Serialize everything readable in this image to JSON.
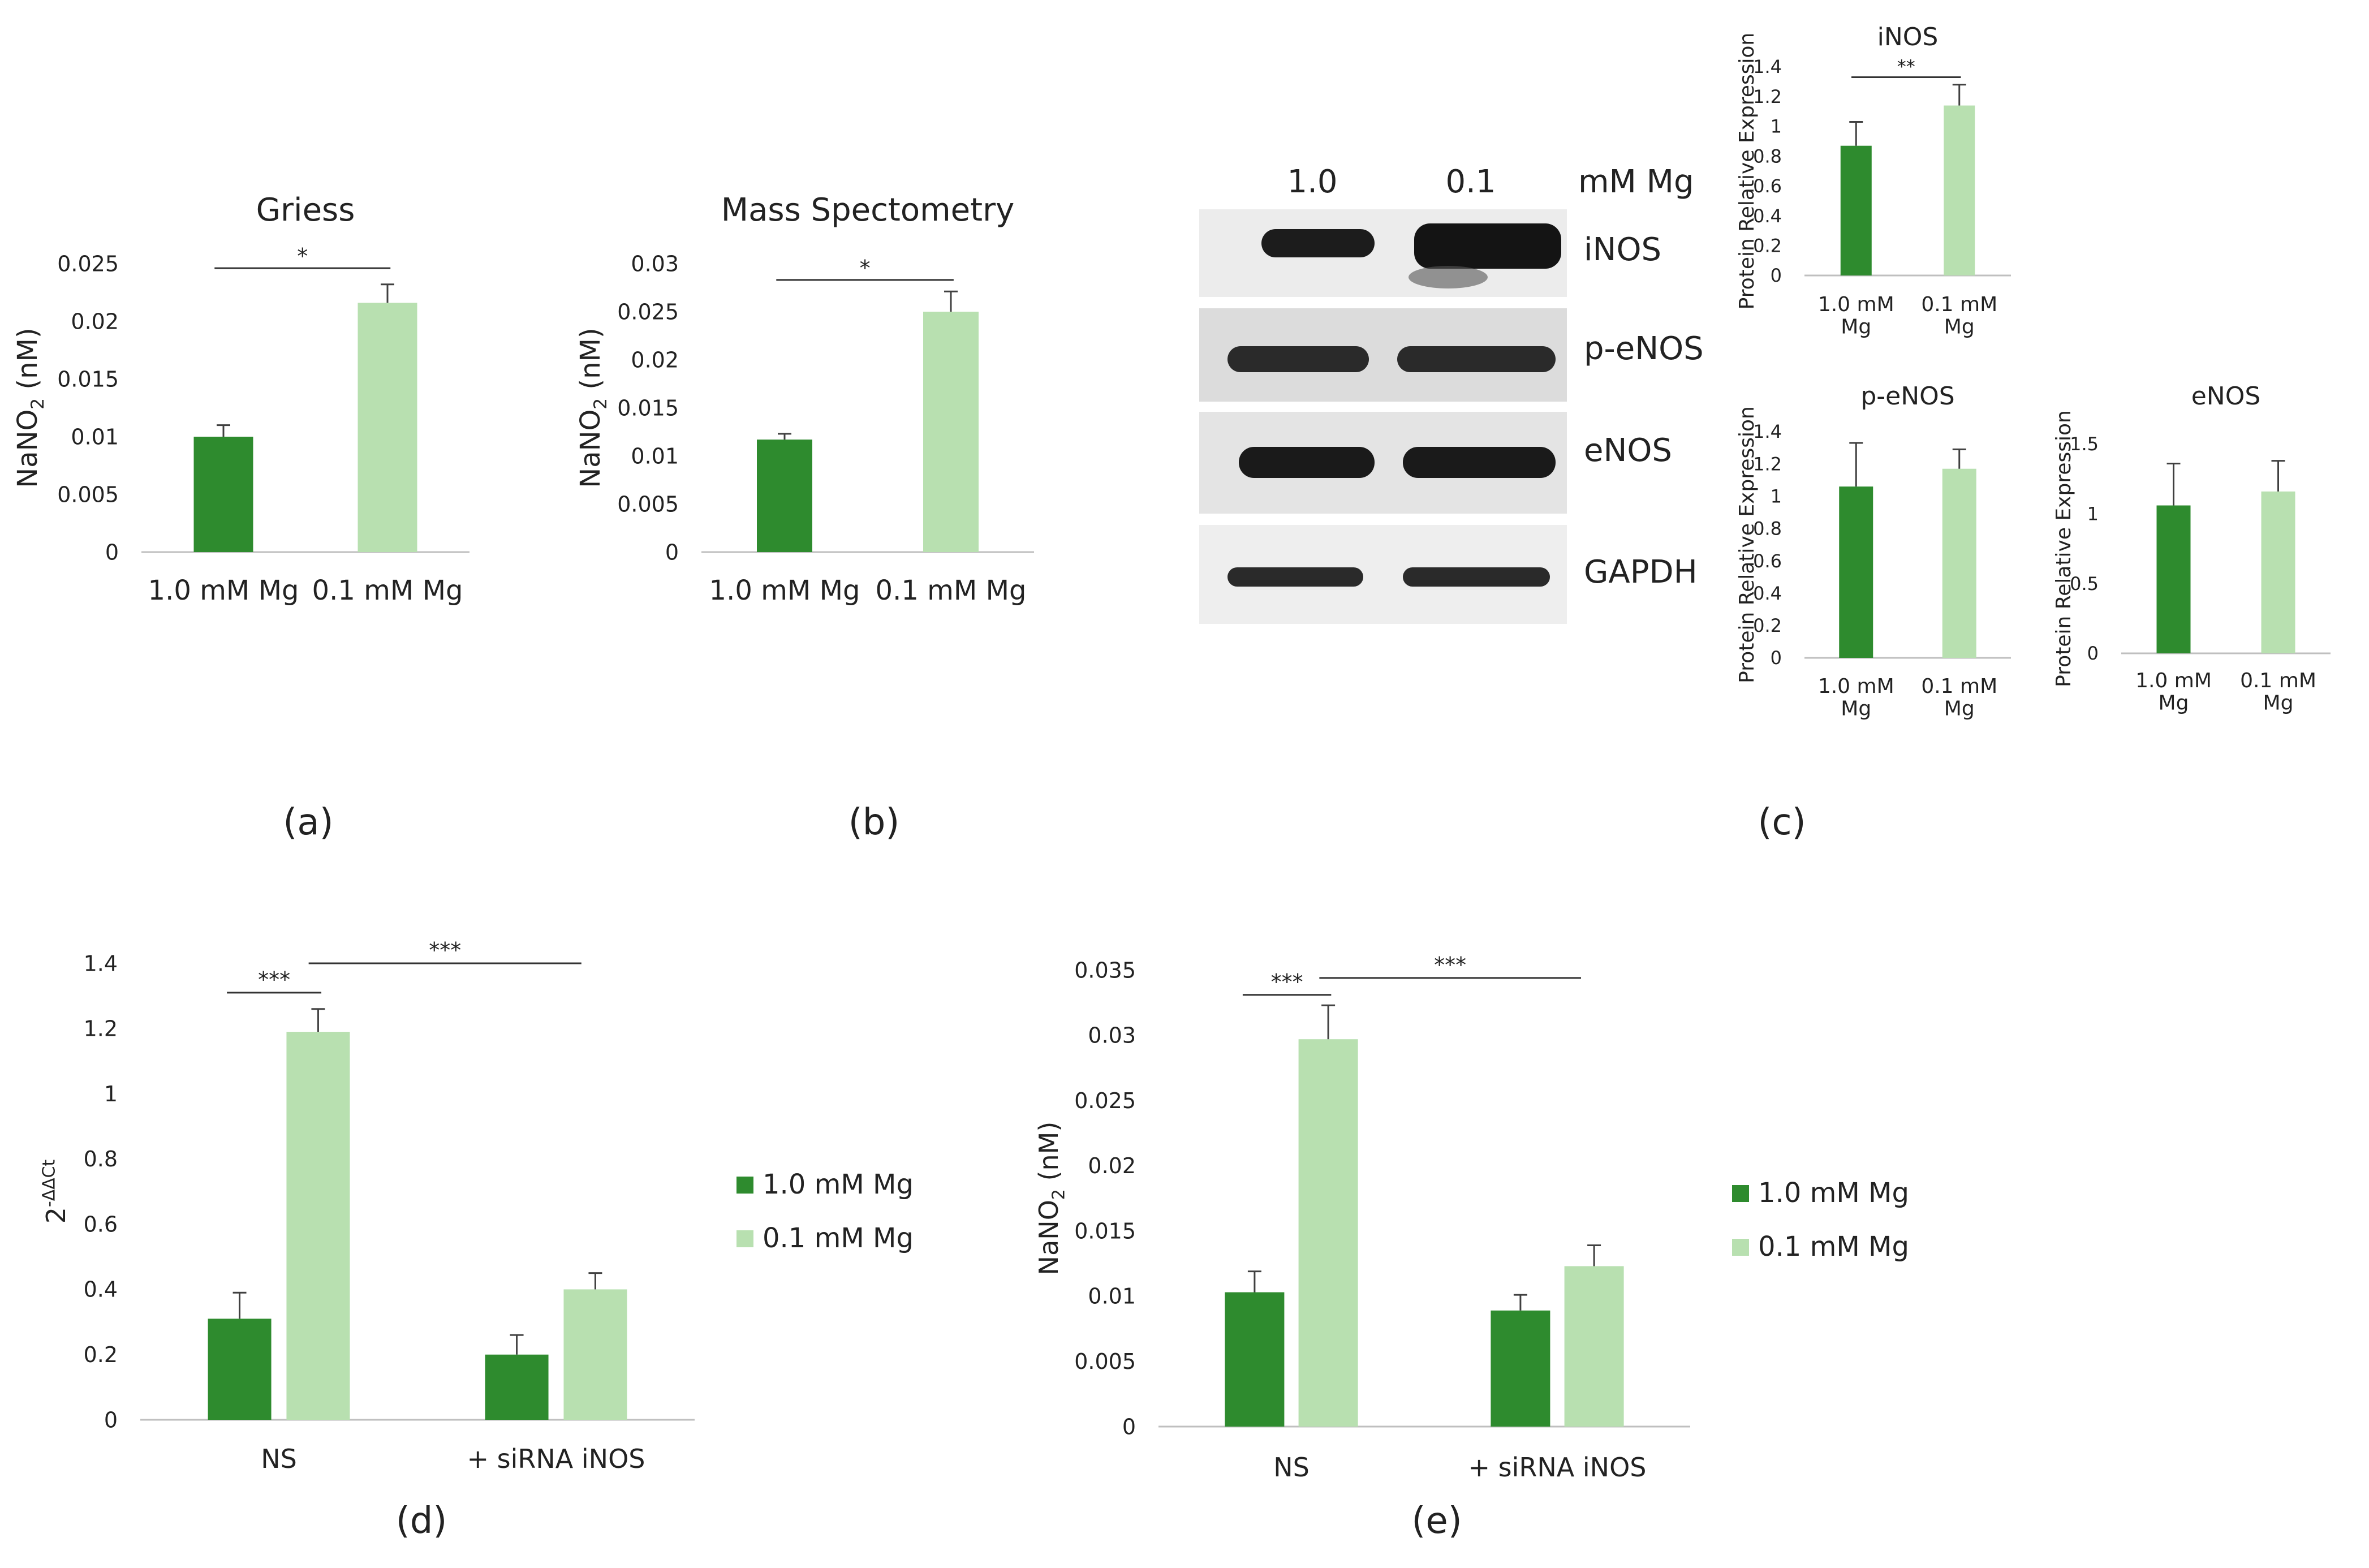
{
  "colors": {
    "dark_green": "#2e8b2e",
    "light_green": "#b8e0b0",
    "axis": "#bfbfbf",
    "text": "#222222",
    "error_bar": "#404040"
  },
  "panel_labels": [
    "(a)",
    "(b)",
    "(c)",
    "(d)",
    "(e)"
  ],
  "western_blot": {
    "header": [
      "1.0",
      "0.1",
      "mM Mg"
    ],
    "bands": [
      "iNOS",
      "p-eNOS",
      "eNOS",
      "GAPDH"
    ]
  },
  "legend": {
    "items": [
      "1.0 mM Mg",
      "0.1 mM Mg"
    ]
  },
  "chart_data": [
    {
      "id": "a",
      "type": "bar",
      "title": "Griess",
      "ylabel": "NaNO2 (nM)",
      "categories": [
        "1.0 mM Mg",
        "0.1 mM Mg"
      ],
      "values": [
        0.01,
        0.0216
      ],
      "errors": [
        0.001,
        0.0016
      ],
      "ylim": [
        0,
        0.025
      ],
      "yticks": [
        "0",
        "0.005",
        "0.01",
        "0.015",
        "0.02",
        "0.025"
      ],
      "significance": [
        {
          "from": 0,
          "to": 1,
          "label": "*",
          "y": 0.0246
        }
      ]
    },
    {
      "id": "b",
      "type": "bar",
      "title": "Mass Spectometry",
      "ylabel": "NaNO2 (nM)",
      "categories": [
        "1.0 mM Mg",
        "0.1 mM Mg"
      ],
      "values": [
        0.0117,
        0.025
      ],
      "errors": [
        0.0006,
        0.0021
      ],
      "ylim": [
        0,
        0.03
      ],
      "yticks": [
        "0",
        "0.005",
        "0.01",
        "0.015",
        "0.02",
        "0.025",
        "0.03"
      ],
      "significance": [
        {
          "from": 0,
          "to": 1,
          "label": "*",
          "y": 0.0283
        }
      ]
    },
    {
      "id": "c-inos",
      "type": "bar",
      "title": "iNOS",
      "ylabel": "Protein Relative Expression",
      "categories": [
        "1.0 mM Mg",
        "0.1 mM Mg"
      ],
      "values": [
        0.87,
        1.14
      ],
      "errors": [
        0.16,
        0.14
      ],
      "ylim": [
        0,
        1.4
      ],
      "yticks": [
        "0",
        "0.2",
        "0.4",
        "0.6",
        "0.8",
        "1",
        "1.2",
        "1.4"
      ],
      "significance": [
        {
          "from": 0,
          "to": 1,
          "label": "**",
          "y": 1.33
        }
      ]
    },
    {
      "id": "c-peNOS",
      "type": "bar",
      "title": "p-eNOS",
      "ylabel": "Protein Relative Expression",
      "categories": [
        "1.0 mM Mg",
        "0.1 mM Mg"
      ],
      "values": [
        1.06,
        1.17
      ],
      "errors": [
        0.27,
        0.12
      ],
      "ylim": [
        0,
        1.4
      ],
      "yticks": [
        "0",
        "0.2",
        "0.4",
        "0.6",
        "0.8",
        "1",
        "1.2",
        "1.4"
      ],
      "significance": []
    },
    {
      "id": "c-eNOS",
      "type": "bar",
      "title": "eNOS",
      "ylabel": "Protein Relative Expression",
      "categories": [
        "1.0 mM Mg",
        "0.1 mM Mg"
      ],
      "values": [
        1.06,
        1.16
      ],
      "errors": [
        0.3,
        0.22
      ],
      "ylim": [
        0,
        1.5
      ],
      "yticks": [
        "0",
        "0.5",
        "1",
        "1.5"
      ],
      "significance": []
    },
    {
      "id": "d",
      "type": "bar",
      "title": "",
      "ylabel": "2-ΔΔCt",
      "categories": [
        "NS",
        "+ siRNA iNOS"
      ],
      "series": [
        {
          "name": "1.0 mM Mg",
          "values": [
            0.31,
            0.2
          ],
          "errors": [
            0.08,
            0.06
          ]
        },
        {
          "name": "0.1 mM Mg",
          "values": [
            1.19,
            0.4
          ],
          "errors": [
            0.07,
            0.05
          ]
        }
      ],
      "ylim": [
        0,
        1.4
      ],
      "yticks": [
        "0",
        "0.2",
        "0.4",
        "0.6",
        "0.8",
        "1",
        "1.2",
        "1.4"
      ],
      "significance": [
        {
          "label": "***",
          "y": 1.31,
          "from": [
            0,
            0
          ],
          "to": [
            0,
            1
          ]
        },
        {
          "label": "***",
          "y": 1.4,
          "from": [
            0,
            1
          ],
          "to": [
            1,
            0.5
          ]
        }
      ]
    },
    {
      "id": "e",
      "type": "bar",
      "title": "",
      "ylabel": "NaNO2 (nM)",
      "categories": [
        "NS",
        "+ siRNA iNOS"
      ],
      "series": [
        {
          "name": "1.0 mM Mg",
          "values": [
            0.0103,
            0.0089
          ],
          "errors": [
            0.0016,
            0.0012
          ]
        },
        {
          "name": "0.1 mM Mg",
          "values": [
            0.0297,
            0.0123
          ],
          "errors": [
            0.0026,
            0.0016
          ]
        }
      ],
      "ylim": [
        0,
        0.035
      ],
      "yticks": [
        "0",
        "0.005",
        "0.01",
        "0.015",
        "0.02",
        "0.025",
        "0.03",
        "0.035"
      ],
      "significance": [
        {
          "label": "***",
          "y": 0.0331,
          "from": [
            0,
            0
          ],
          "to": [
            0,
            1
          ]
        },
        {
          "label": "***",
          "y": 0.0344,
          "from": [
            0,
            1
          ],
          "to": [
            1,
            0.5
          ]
        }
      ]
    }
  ]
}
